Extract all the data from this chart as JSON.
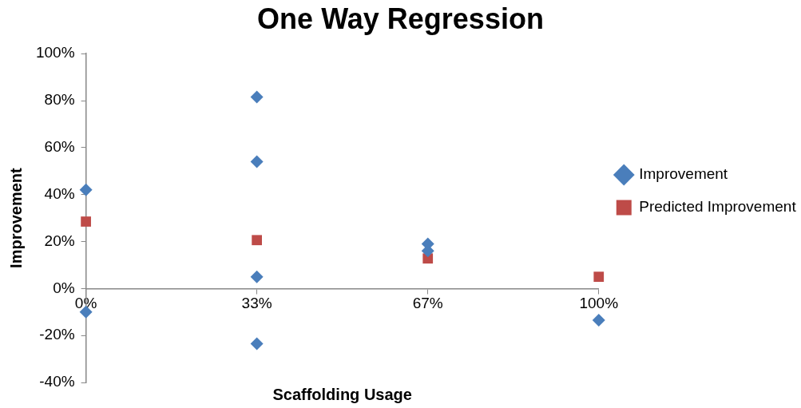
{
  "chart_data": {
    "type": "scatter",
    "title": "One Way Regression",
    "xlabel": "Scaffolding Usage",
    "ylabel": "Improvement",
    "xlim": [
      0,
      100
    ],
    "xticks": [
      {
        "value": 0,
        "label": "0%"
      },
      {
        "value": 33.33,
        "label": "33%"
      },
      {
        "value": 66.67,
        "label": "67%"
      },
      {
        "value": 100,
        "label": "100%"
      }
    ],
    "ylim": [
      -40,
      100
    ],
    "yticks": [
      {
        "value": -40,
        "label": "-40%"
      },
      {
        "value": -20,
        "label": "-20%"
      },
      {
        "value": 0,
        "label": "0%"
      },
      {
        "value": 20,
        "label": "20%"
      },
      {
        "value": 40,
        "label": "40%"
      },
      {
        "value": 60,
        "label": "60%"
      },
      {
        "value": 80,
        "label": "80%"
      },
      {
        "value": 100,
        "label": "100%"
      }
    ],
    "grid": false,
    "legend": "right",
    "series": [
      {
        "name": "Improvement",
        "color": "#4a7ebb",
        "marker": "diamond",
        "x": [
          0,
          0,
          33.33,
          33.33,
          33.33,
          33.33,
          66.67,
          66.67,
          100
        ],
        "values": [
          42,
          -10,
          81.5,
          54,
          5,
          -23.5,
          19,
          16,
          -13.5
        ]
      },
      {
        "name": "Predicted Improvement",
        "color": "#be4b48",
        "marker": "square",
        "x": [
          0,
          33.33,
          66.67,
          100
        ],
        "values": [
          28.5,
          20.6,
          12.8,
          5
        ]
      }
    ]
  }
}
